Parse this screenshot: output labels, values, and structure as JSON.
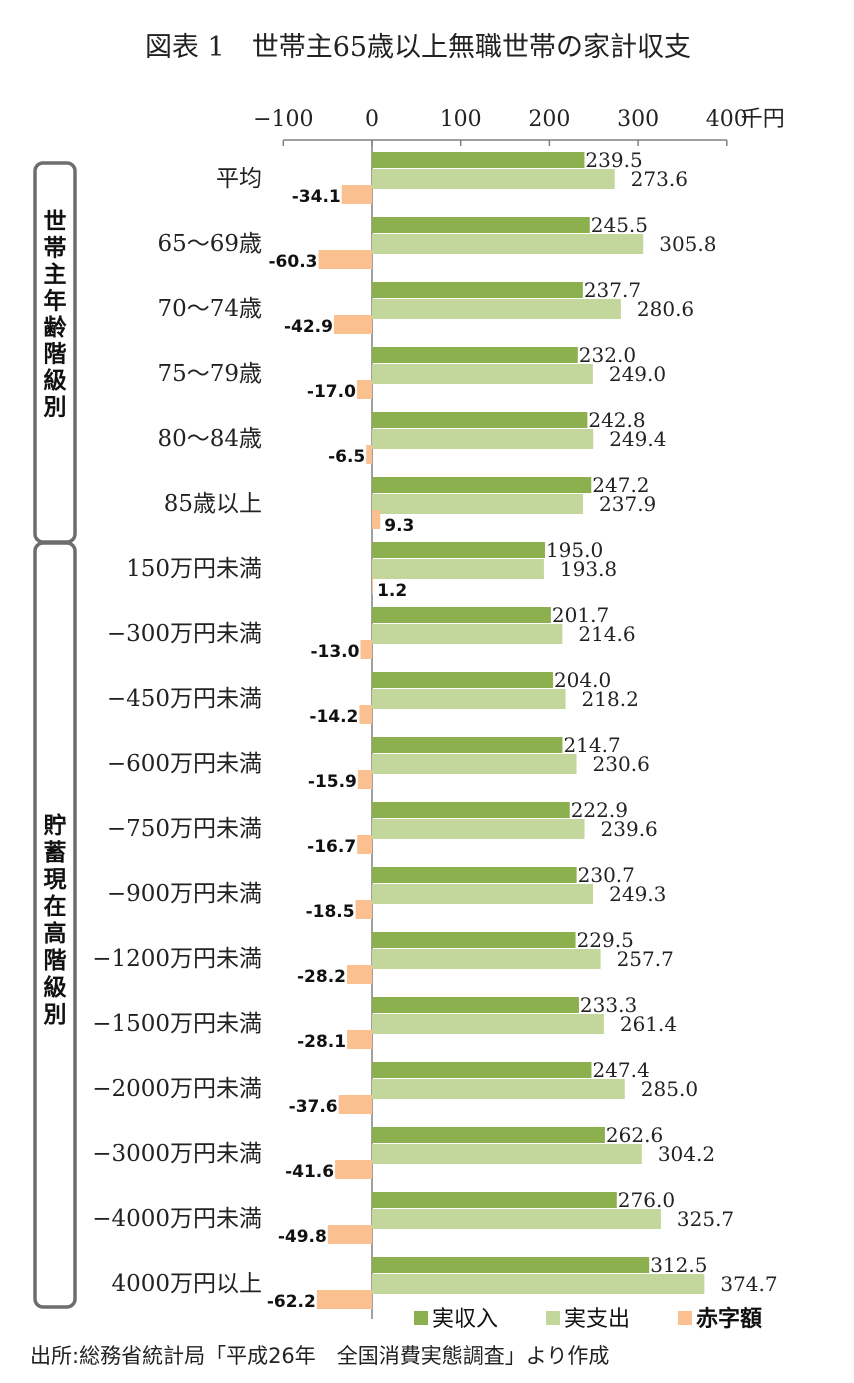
{
  "title": "図表 1　世帯主65歳以上無職世帯の家計収支",
  "unit": "千円",
  "source": "出所:総務省統計局「平成26年　全国消費実態調査」より作成",
  "groups": [
    {
      "label": "世帯主年齢階級別",
      "chars": [
        "世",
        "帯",
        "主",
        "年",
        "齢",
        "階",
        "級",
        "別"
      ]
    },
    {
      "label": "貯蓄現在高階級別",
      "chars": [
        "貯",
        "蓄",
        "現",
        "在",
        "高",
        "階",
        "級",
        "別"
      ]
    }
  ],
  "colors": {
    "income": "#8db04e",
    "expenditure": "#c3d69b",
    "deficit": "#fac090",
    "axis": "#808080",
    "bracket": "#6d6d6d"
  },
  "chart_data": {
    "type": "bar",
    "orientation": "horizontal",
    "xlim": [
      -100,
      400
    ],
    "x_ticks": [
      -100,
      0,
      100,
      200,
      300,
      400
    ],
    "x_tick_labels": [
      "−100",
      "0",
      "100",
      "200",
      "300",
      "400"
    ],
    "categories": [
      "平均",
      "65～69歳",
      "70～74歳",
      "75～79歳",
      "80～84歳",
      "85歳以上",
      "150万円未満",
      "−300万円未満",
      "−450万円未満",
      "−600万円未満",
      "−750万円未満",
      "−900万円未満",
      "−1200万円未満",
      "−1500万円未満",
      "−2000万円未満",
      "−3000万円未満",
      "−4000万円未満",
      "4000万円以上"
    ],
    "series": [
      {
        "name": "実収入",
        "values": [
          239.5,
          245.5,
          237.7,
          232.0,
          242.8,
          247.2,
          195.0,
          201.7,
          204.0,
          214.7,
          222.9,
          230.7,
          229.5,
          233.3,
          247.4,
          262.6,
          276.0,
          312.5
        ]
      },
      {
        "name": "実支出",
        "values": [
          273.6,
          305.8,
          280.6,
          249.0,
          249.4,
          237.9,
          193.8,
          214.6,
          218.2,
          230.6,
          239.6,
          249.3,
          257.7,
          261.4,
          285.0,
          304.2,
          325.7,
          374.7
        ]
      },
      {
        "name": "赤字額",
        "values": [
          -34.1,
          -60.3,
          -42.9,
          -17.0,
          -6.5,
          9.3,
          1.2,
          -13.0,
          -14.2,
          -15.9,
          -16.7,
          -18.5,
          -28.2,
          -28.1,
          -37.6,
          -41.6,
          -49.8,
          -62.2
        ]
      }
    ],
    "legend": "bottom-right"
  }
}
